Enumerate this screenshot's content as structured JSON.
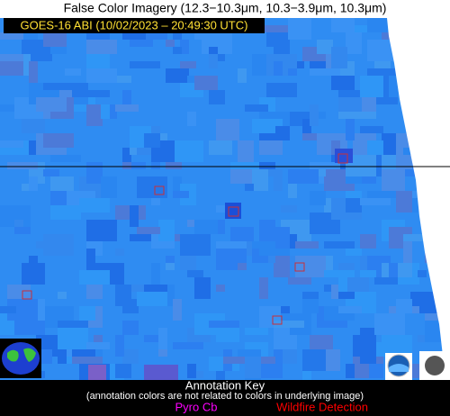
{
  "header": {
    "title": "False Color Imagery (12.3−10.3μm, 10.3−3.9μm, 10.3μm)",
    "label": "GOES-16 ABI (10/02/2023 – 20:49:30 UTC)"
  },
  "annotation_key": {
    "title": "Annotation Key",
    "note": "(annotation colors are not related to colors in underlying image)",
    "items": [
      {
        "label": "Pyro Cb",
        "color": "#ff00ff"
      },
      {
        "label": "Wildfire Detection",
        "color": "#ff0000"
      }
    ]
  }
}
